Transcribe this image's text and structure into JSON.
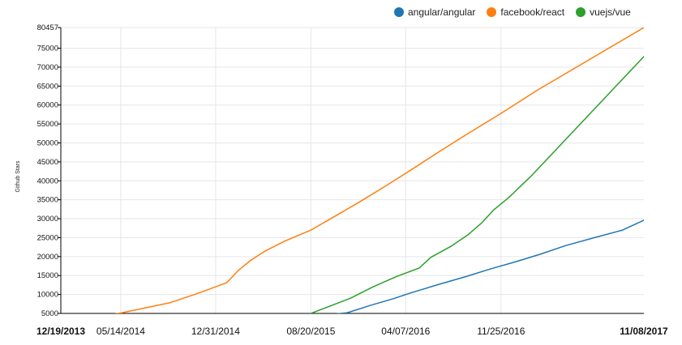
{
  "legend": [
    {
      "name": "angular/angular",
      "color": "#1f77b4"
    },
    {
      "name": "facebook/react",
      "color": "#ff7f0e"
    },
    {
      "name": "vuejs/vue",
      "color": "#2ca02c"
    }
  ],
  "chart_data": {
    "type": "line",
    "title": "",
    "xlabel": "",
    "ylabel": "Github Stars",
    "ylim": [
      5000,
      80457
    ],
    "xlim": [
      "2013-12-19",
      "2017-11-08"
    ],
    "y_ticks": [
      "5000",
      "10000",
      "15000",
      "20000",
      "25000",
      "30000",
      "35000",
      "40000",
      "45000",
      "50000",
      "55000",
      "60000",
      "65000",
      "70000",
      "75000",
      "80457"
    ],
    "x_ticks": [
      {
        "date": "2013-12-19",
        "label": "12/19/2013",
        "bold": true
      },
      {
        "date": "2014-05-14",
        "label": "05/14/2014",
        "bold": false
      },
      {
        "date": "2014-12-31",
        "label": "12/31/2014",
        "bold": false
      },
      {
        "date": "2015-08-20",
        "label": "08/20/2015",
        "bold": false
      },
      {
        "date": "2016-04-07",
        "label": "04/07/2016",
        "bold": false
      },
      {
        "date": "2016-11-25",
        "label": "11/25/2016",
        "bold": false
      },
      {
        "date": "2017-11-08",
        "label": "11/08/2017",
        "bold": true
      }
    ],
    "gridlines": [
      "2014-05-14",
      "2014-12-31",
      "2015-08-20",
      "2016-04-07",
      "2016-11-25"
    ],
    "legend_position": "top-right",
    "series": [
      {
        "name": "facebook/react",
        "color": "#ff7f0e",
        "points": [
          [
            "2013-12-19",
            2500
          ],
          [
            "2014-05-14",
            5100
          ],
          [
            "2014-09-10",
            7800
          ],
          [
            "2014-11-15",
            10200
          ],
          [
            "2015-01-27",
            13100
          ],
          [
            "2015-02-24",
            16300
          ],
          [
            "2015-03-25",
            18900
          ],
          [
            "2015-05-01",
            21500
          ],
          [
            "2015-06-18",
            24100
          ],
          [
            "2015-08-20",
            27000
          ],
          [
            "2015-10-17",
            30600
          ],
          [
            "2015-12-10",
            34000
          ],
          [
            "2016-02-07",
            37900
          ],
          [
            "2016-04-06",
            41900
          ],
          [
            "2016-06-16",
            46900
          ],
          [
            "2016-08-22",
            51500
          ],
          [
            "2016-11-25",
            57800
          ],
          [
            "2017-02-21",
            63900
          ],
          [
            "2017-11-08",
            80457
          ]
        ]
      },
      {
        "name": "vuejs/vue",
        "color": "#2ca02c",
        "points": [
          [
            "2015-08-20",
            5000
          ],
          [
            "2015-10-12",
            7200
          ],
          [
            "2015-11-24",
            9000
          ],
          [
            "2016-01-18",
            12000
          ],
          [
            "2016-03-15",
            14700
          ],
          [
            "2016-05-10",
            17000
          ],
          [
            "2016-06-07",
            19800
          ],
          [
            "2016-07-26",
            22700
          ],
          [
            "2016-09-06",
            25800
          ],
          [
            "2016-10-08",
            28800
          ],
          [
            "2016-11-07",
            32300
          ],
          [
            "2016-12-15",
            35700
          ],
          [
            "2017-02-05",
            41100
          ],
          [
            "2017-11-08",
            72800
          ]
        ]
      },
      {
        "name": "angular/angular",
        "color": "#1f77b4",
        "points": [
          [
            "2015-08-20",
            4100
          ],
          [
            "2015-11-17",
            5200
          ],
          [
            "2016-01-11",
            7100
          ],
          [
            "2016-03-08",
            8900
          ],
          [
            "2016-04-16",
            10300
          ],
          [
            "2016-06-25",
            12600
          ],
          [
            "2016-08-31",
            14700
          ],
          [
            "2016-11-01",
            16800
          ],
          [
            "2017-01-02",
            18700
          ],
          [
            "2017-02-28",
            20600
          ],
          [
            "2017-05-01",
            22900
          ],
          [
            "2017-07-11",
            25000
          ],
          [
            "2017-09-17",
            27000
          ],
          [
            "2017-11-08",
            29600
          ]
        ]
      }
    ]
  }
}
